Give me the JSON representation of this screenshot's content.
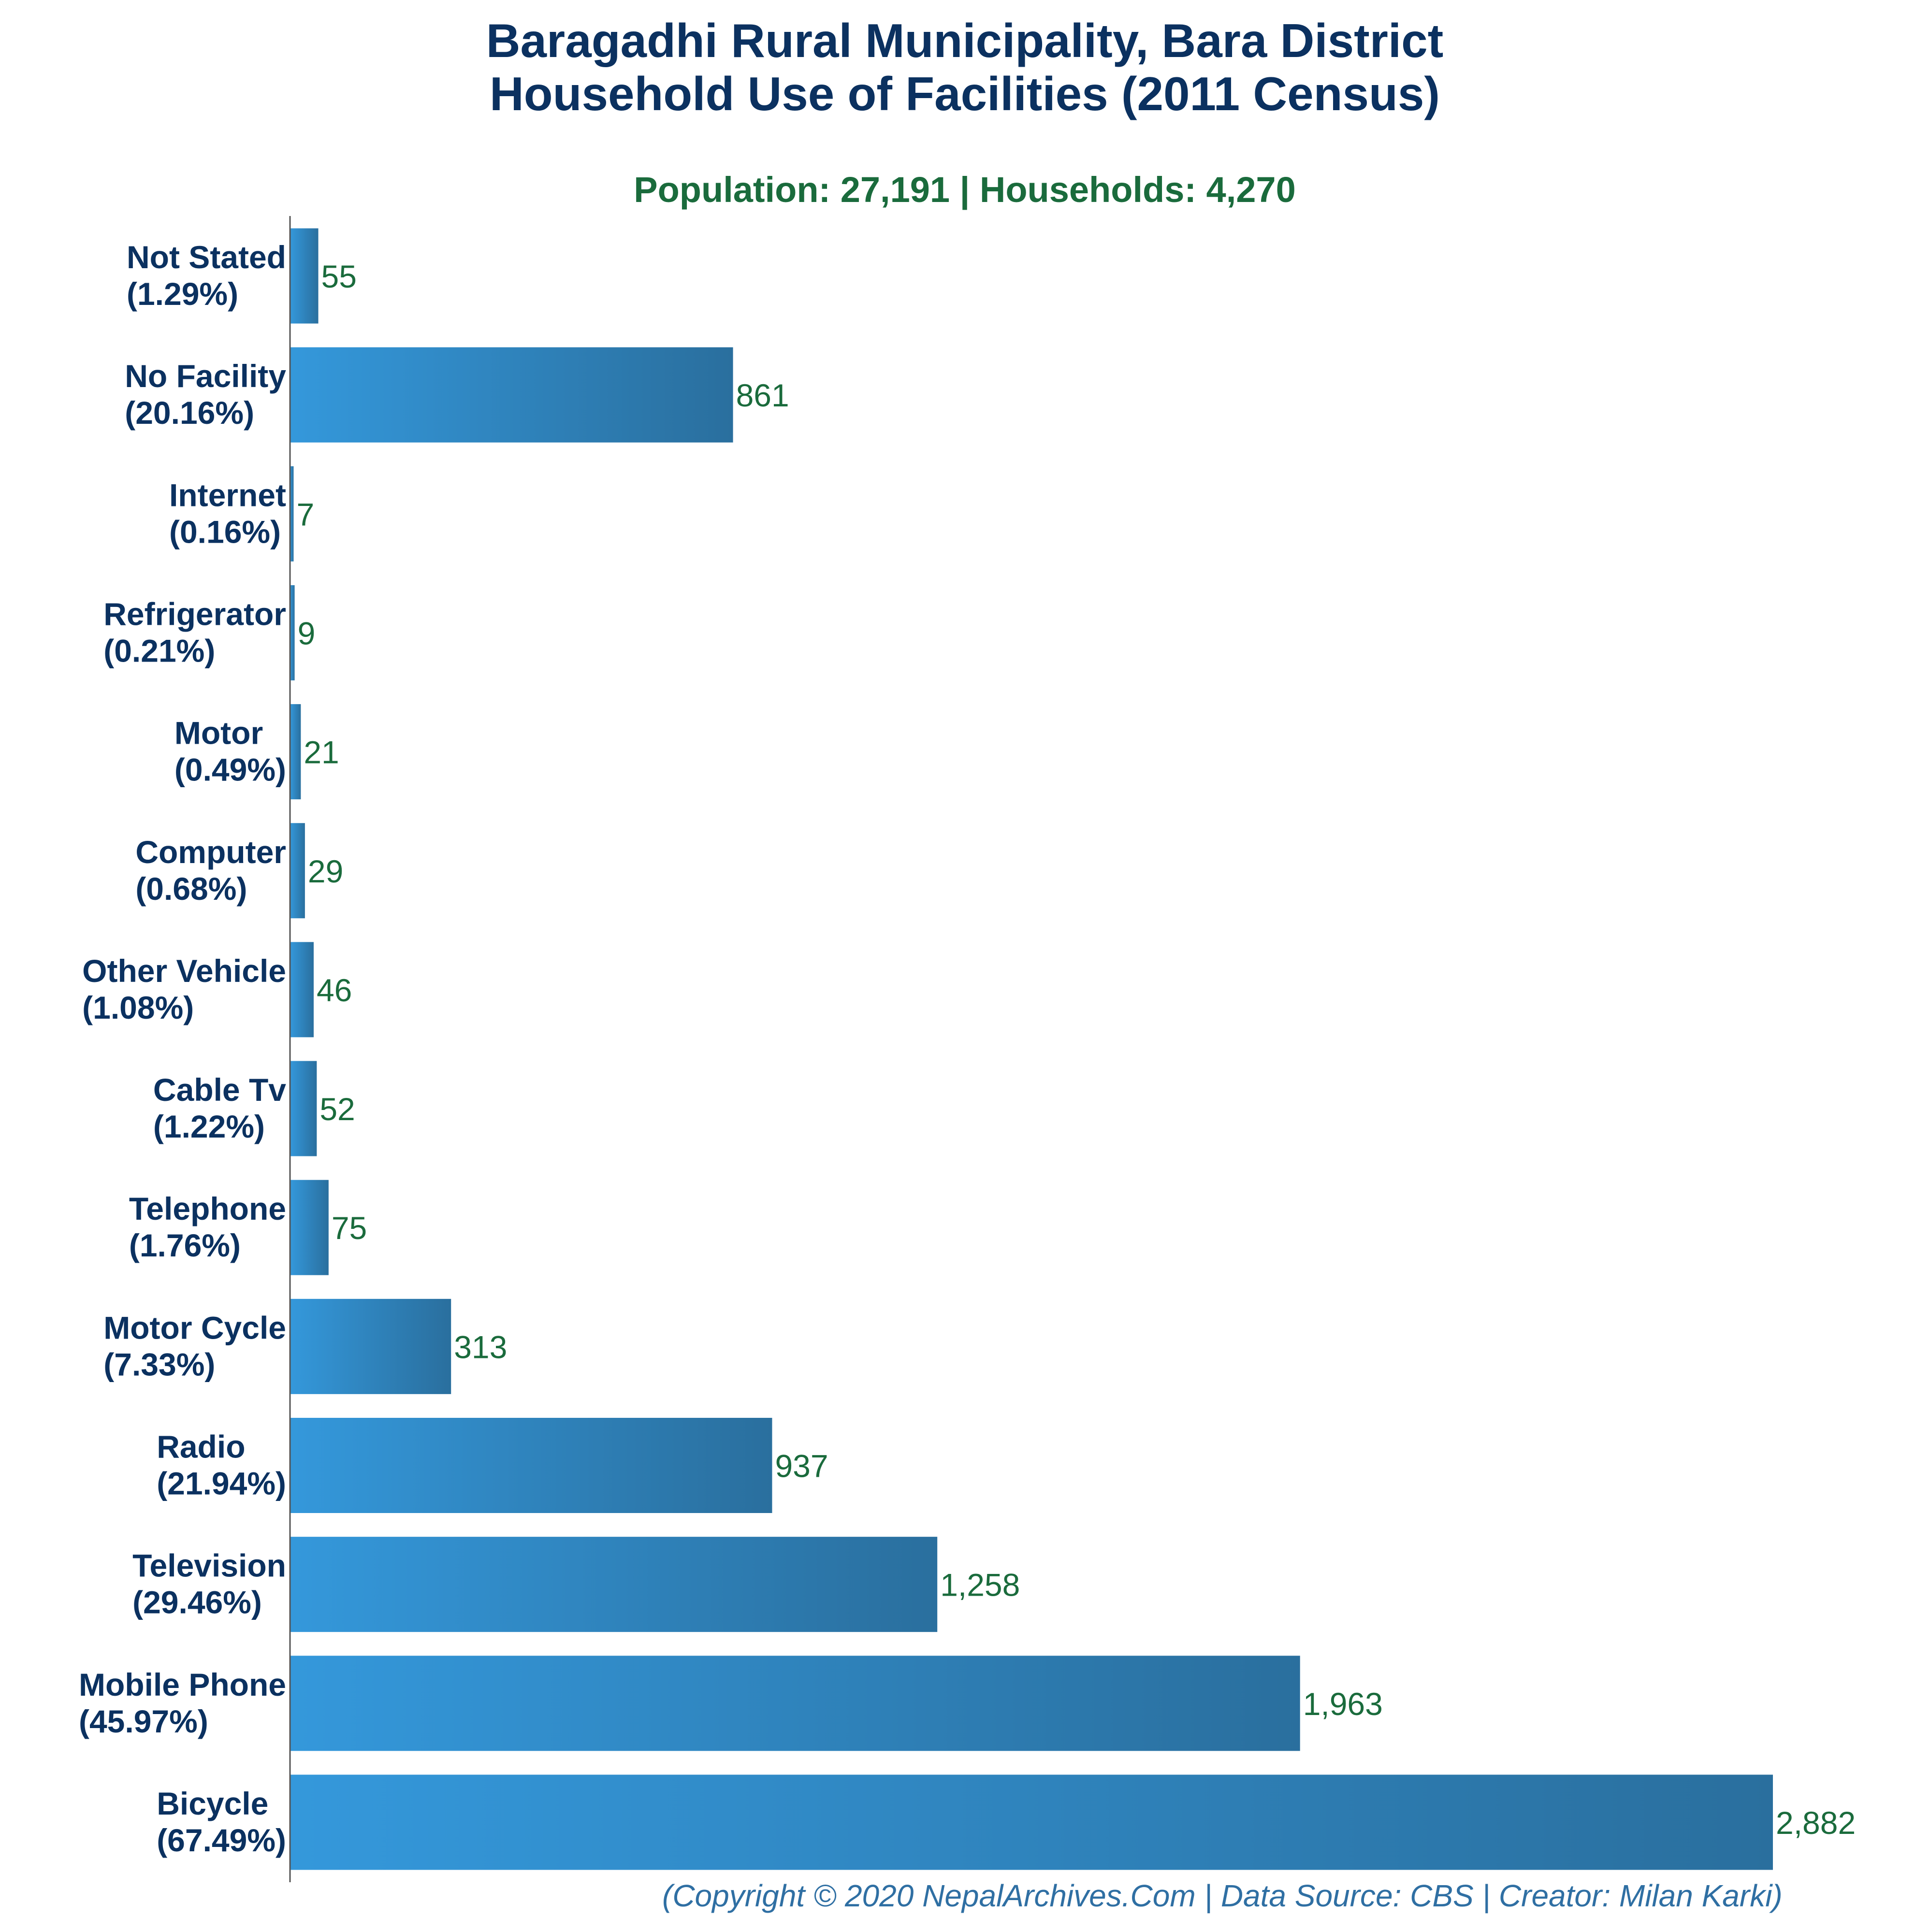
{
  "chart_data": {
    "type": "bar",
    "orientation": "horizontal",
    "title_line1": "Baragadhi Rural Municipality, Bara District",
    "title_line2": "Household Use of Facilities (2011 Census)",
    "subtitle": "Population: 27,191 | Households: 4,270",
    "footer": "(Copyright © 2020 NepalArchives.Com | Data Source: CBS | Creator: Milan Karki)",
    "xlabel": "",
    "ylabel": "",
    "xlim": [
      0,
      3000
    ],
    "grid": false,
    "legend": false,
    "categories": [
      "Not Stated",
      "No Facility",
      "Internet",
      "Refrigerator",
      "Motor",
      "Computer",
      "Other Vehicle",
      "Cable Tv",
      "Telephone",
      "Motor Cycle",
      "Radio",
      "Television",
      "Mobile Phone",
      "Bicycle"
    ],
    "percent_labels": [
      "(1.29%)",
      "(20.16%)",
      "(0.16%)",
      "(0.21%)",
      "(0.49%)",
      "(0.68%)",
      "(1.08%)",
      "(1.22%)",
      "(1.76%)",
      "(7.33%)",
      "(21.94%)",
      "(29.46%)",
      "(45.97%)",
      "(67.49%)"
    ],
    "values": [
      55,
      861,
      7,
      9,
      21,
      29,
      46,
      52,
      75,
      313,
      937,
      1258,
      1963,
      2882
    ],
    "value_labels": [
      "55",
      "861",
      "7",
      "9",
      "21",
      "29",
      "46",
      "52",
      "75",
      "313",
      "937",
      "1,258",
      "1,963",
      "2,882"
    ],
    "colors": {
      "title": "#0b3160",
      "subtitle": "#1a6b3c",
      "category_label": "#0b3160",
      "value_label": "#1a6b3c",
      "bar_light": "#3498db",
      "bar_dark": "#2a6f9e",
      "axis": "#555555",
      "footer": "#2f6fa3"
    }
  }
}
